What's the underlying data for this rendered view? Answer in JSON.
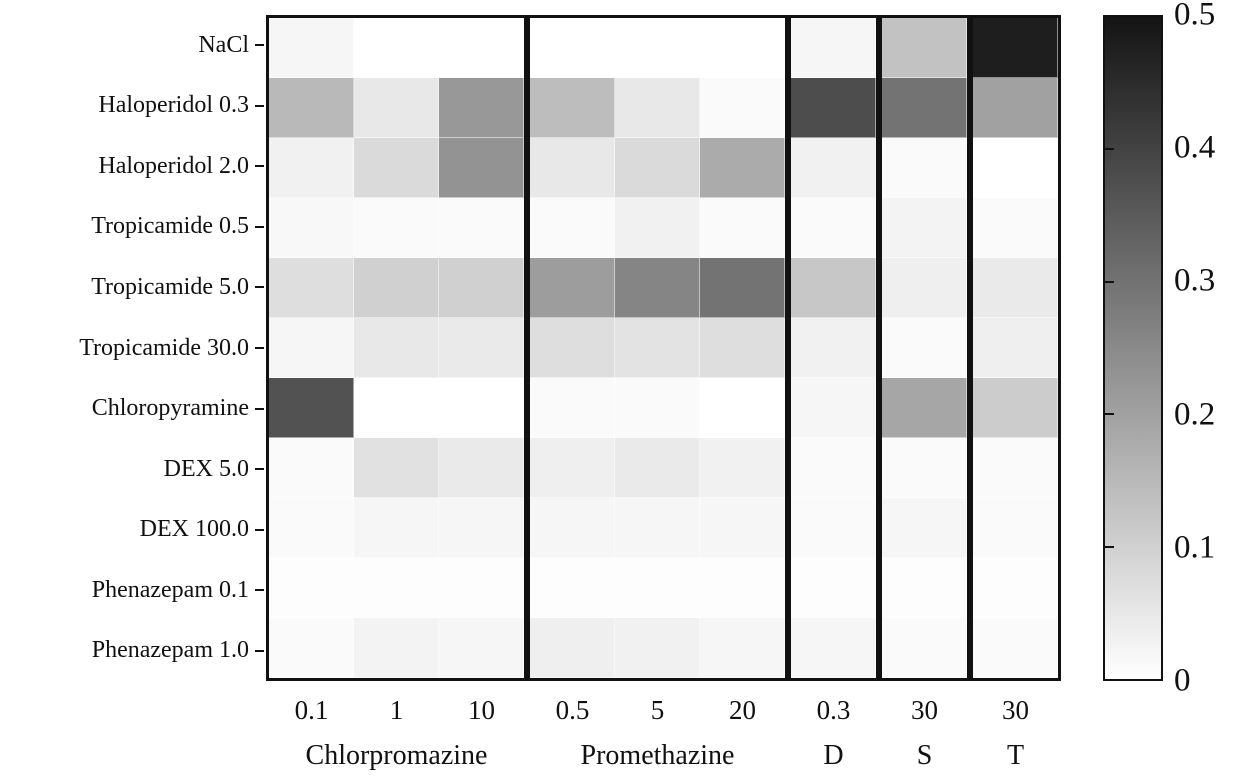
{
  "chart_data": {
    "type": "heatmap",
    "title": "",
    "rows": [
      "NaCl",
      "Haloperidol 0.3",
      "Haloperidol 2.0",
      "Tropicamide 0.5",
      "Tropicamide 5.0",
      "Tropicamide 30.0",
      "Chloropyramine",
      "DEX 5.0",
      "DEX 100.0",
      "Phenazepam 0.1",
      "Phenazepam 1.0"
    ],
    "column_groups": [
      {
        "label": "Chlorpromazine",
        "columns": [
          "0.1",
          "1",
          "10"
        ]
      },
      {
        "label": "Promethazine",
        "columns": [
          "0.5",
          "5",
          "20"
        ]
      },
      {
        "label": "D",
        "columns": [
          "0.3"
        ]
      },
      {
        "label": "S",
        "columns": [
          "30"
        ]
      },
      {
        "label": "T",
        "columns": [
          "30"
        ]
      }
    ],
    "values": [
      [
        0.02,
        0.0,
        0.0,
        0.0,
        0.0,
        0.0,
        0.02,
        0.13,
        0.48
      ],
      [
        0.15,
        0.05,
        0.22,
        0.14,
        0.05,
        0.01,
        0.38,
        0.3,
        0.2
      ],
      [
        0.03,
        0.08,
        0.23,
        0.05,
        0.08,
        0.18,
        0.03,
        0.01,
        0.0
      ],
      [
        0.015,
        0.01,
        0.01,
        0.01,
        0.03,
        0.01,
        0.01,
        0.025,
        0.01
      ],
      [
        0.07,
        0.1,
        0.1,
        0.21,
        0.26,
        0.3,
        0.12,
        0.035,
        0.045
      ],
      [
        0.02,
        0.05,
        0.045,
        0.07,
        0.06,
        0.07,
        0.03,
        0.01,
        0.035
      ],
      [
        0.37,
        0.0,
        0.0,
        0.01,
        0.01,
        0.0,
        0.02,
        0.19,
        0.11
      ],
      [
        0.01,
        0.065,
        0.045,
        0.035,
        0.045,
        0.03,
        0.01,
        0.01,
        0.01
      ],
      [
        0.01,
        0.02,
        0.02,
        0.02,
        0.02,
        0.02,
        0.01,
        0.02,
        0.01
      ],
      [
        0.005,
        0.005,
        0.005,
        0.005,
        0.005,
        0.005,
        0.005,
        0.005,
        0.005
      ],
      [
        0.01,
        0.025,
        0.02,
        0.035,
        0.03,
        0.02,
        0.02,
        0.01,
        0.01
      ]
    ],
    "colorbar": {
      "min": 0,
      "max": 0.5,
      "ticks": [
        "0.5",
        "0.4",
        "0.3",
        "0.2",
        "0.1",
        "0"
      ],
      "min_color": "#ffffff",
      "max_color": "#151515"
    },
    "layout": {
      "grid": false,
      "legend_position": "right-colorbar",
      "group_separator_color": "#111111"
    }
  }
}
